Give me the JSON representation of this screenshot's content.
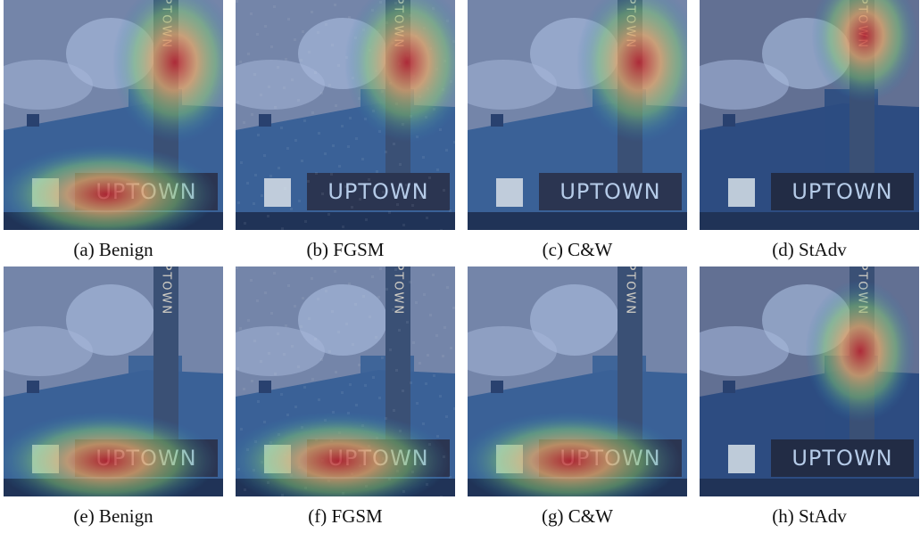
{
  "figure": {
    "panels": [
      {
        "id": "a",
        "caption": "(a) Benign",
        "heat": [
          "sign",
          "marquee"
        ],
        "noise": false,
        "dark": false
      },
      {
        "id": "b",
        "caption": "(b) FGSM",
        "heat": [
          "sign"
        ],
        "noise": true,
        "dark": false
      },
      {
        "id": "c",
        "caption": "(c) C&W",
        "heat": [
          "sign"
        ],
        "noise": false,
        "dark": false
      },
      {
        "id": "d",
        "caption": "(d) StAdv",
        "heat": [
          "sign-top"
        ],
        "noise": false,
        "dark": true
      },
      {
        "id": "e",
        "caption": "(e) Benign",
        "heat": [
          "marquee"
        ],
        "noise": false,
        "dark": false
      },
      {
        "id": "f",
        "caption": "(f) FGSM",
        "heat": [
          "marquee"
        ],
        "noise": true,
        "dark": false
      },
      {
        "id": "g",
        "caption": "(g) C&W",
        "heat": [
          "marquee"
        ],
        "noise": false,
        "dark": false
      },
      {
        "id": "h",
        "caption": "(h) StAdv",
        "heat": [
          "sign-mid"
        ],
        "noise": false,
        "dark": true
      }
    ],
    "marquee_text": "UPTOWN",
    "sign_text": "UPTOWN",
    "colors": {
      "sky": "#7f87a8",
      "building": "#3d5e93",
      "heat_hot": "#d7191c",
      "heat_warm": "#fdae61",
      "heat_mid": "#8fd36a",
      "heat_cool": "#2c7bb6"
    }
  }
}
